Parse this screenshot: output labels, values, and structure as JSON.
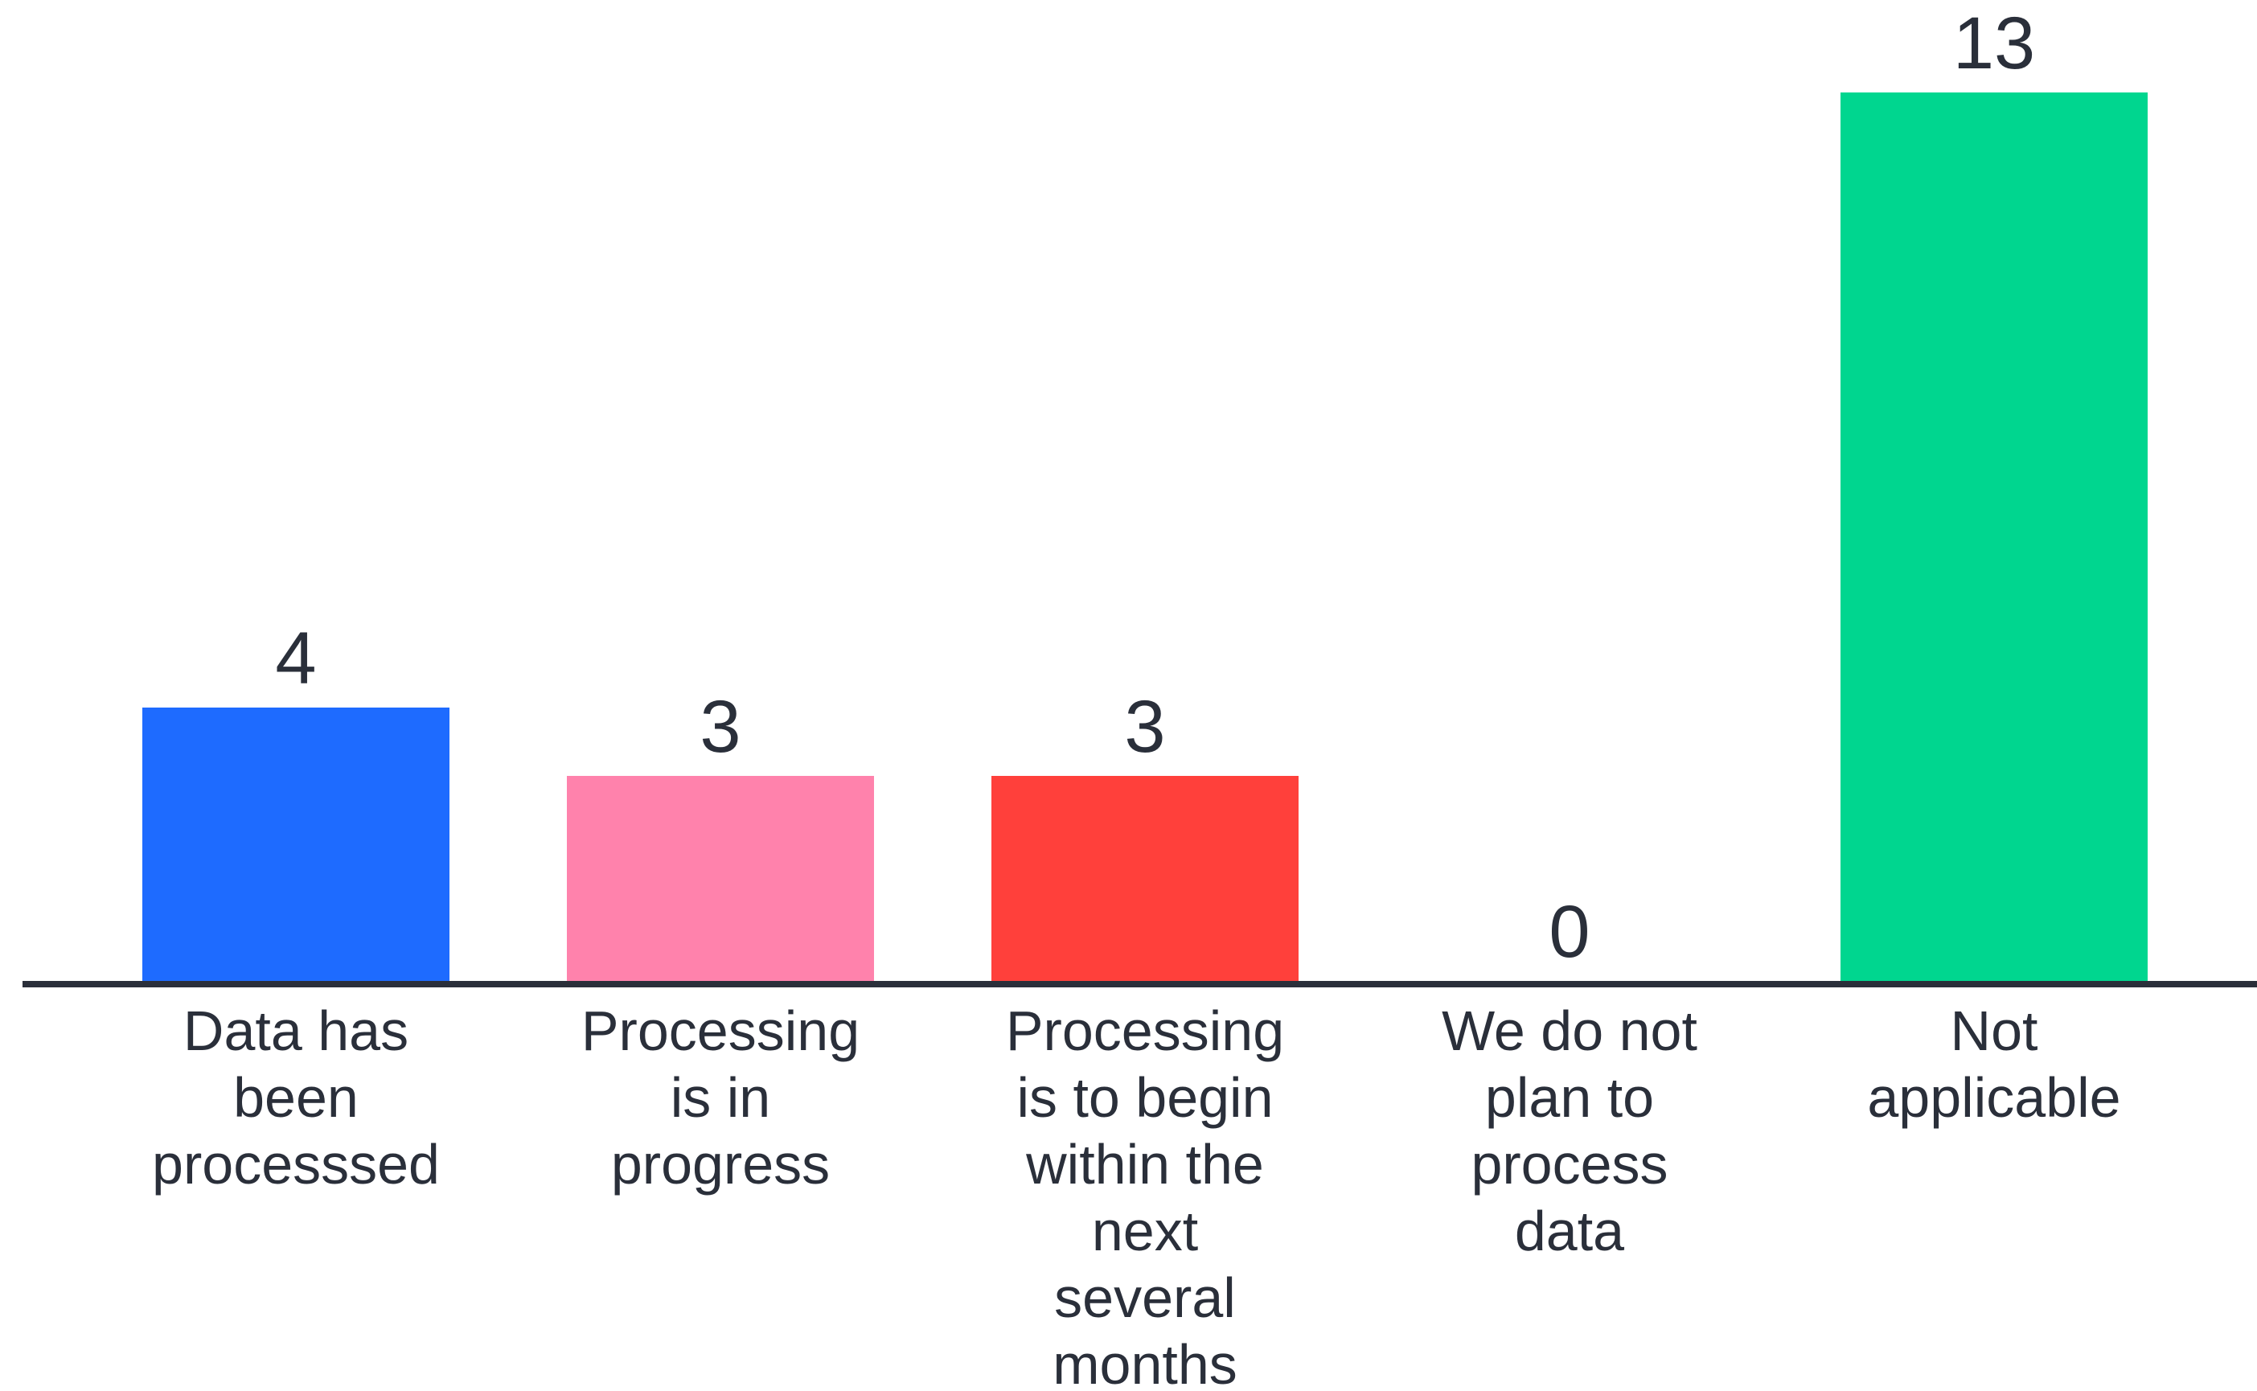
{
  "chart_data": {
    "type": "bar",
    "categories": [
      [
        "Data has",
        "been",
        "processsed"
      ],
      [
        "Processing",
        "is in",
        "progress"
      ],
      [
        "Processing",
        "is to begin",
        "within the",
        "next",
        "several",
        "months"
      ],
      [
        "We do not",
        "plan to",
        "process",
        "data"
      ],
      [
        "Not",
        "applicable"
      ]
    ],
    "values": [
      4,
      3,
      3,
      0,
      13
    ],
    "colors": [
      "#1e6bff",
      "#ff82ac",
      "#ff403b",
      "#7a7a7a",
      "#00d68f"
    ],
    "axis_color": "#2a2f3a",
    "ylim": [
      0,
      13
    ],
    "grid": false,
    "title": "",
    "xlabel": "",
    "ylabel": ""
  }
}
